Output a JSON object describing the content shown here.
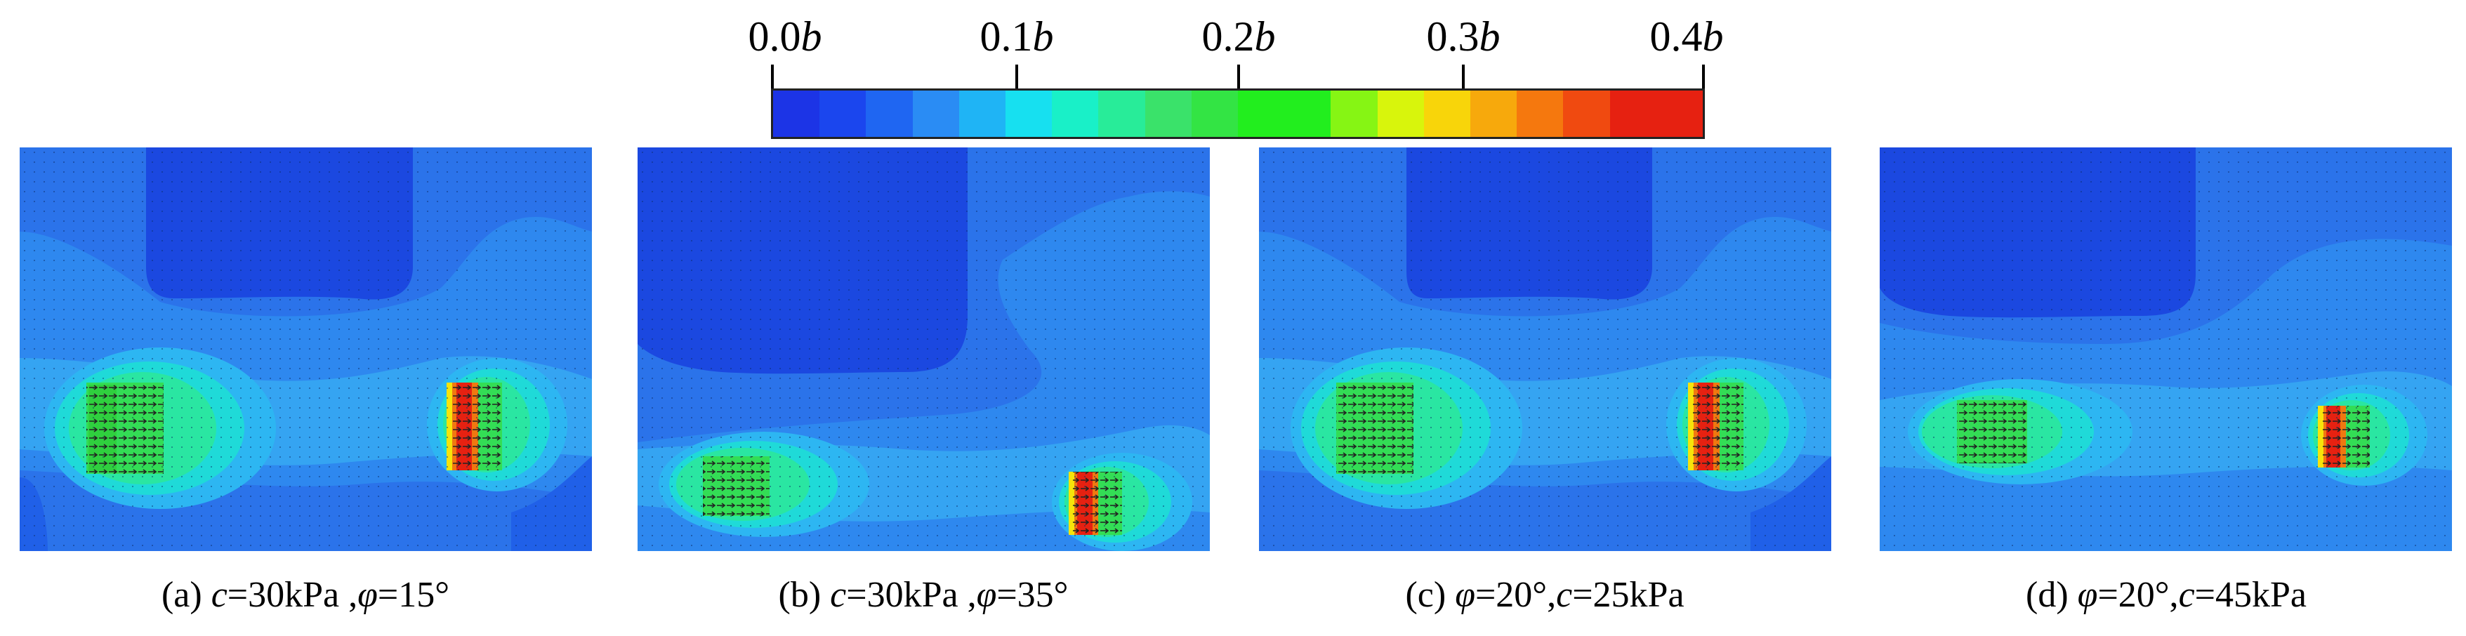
{
  "colorbar": {
    "tick_labels": [
      {
        "coef": "0.0",
        "sym": "b"
      },
      {
        "coef": "0.1",
        "sym": "b"
      },
      {
        "coef": "0.2",
        "sym": "b"
      },
      {
        "coef": "0.3",
        "sym": "b"
      },
      {
        "coef": "0.4",
        "sym": "b"
      }
    ],
    "colors": [
      "#1c34e6",
      "#1b46ee",
      "#1f66f2",
      "#2a8cf4",
      "#1fb4f5",
      "#17e0f0",
      "#19f0c8",
      "#28ec99",
      "#3ae26a",
      "#33e444",
      "#22ee1e",
      "#22ee1e",
      "#86f514",
      "#d8f50c",
      "#f8d50a",
      "#f7a90c",
      "#f5780e",
      "#f04a10",
      "#e62111",
      "#e62111"
    ]
  },
  "panels": [
    {
      "caption": {
        "label": "(a) ",
        "v1": "c",
        "t1": "=30kPa ,",
        "v2": "φ",
        "t2": "=15°"
      }
    },
    {
      "caption": {
        "label": "(b) ",
        "v1": "c",
        "t1": "=30kPa ,",
        "v2": "φ",
        "t2": "=35°"
      }
    },
    {
      "caption": {
        "label": "(c) ",
        "v1": "φ",
        "t1": "=20°,",
        "v2": "c",
        "t2": "=25kPa"
      }
    },
    {
      "caption": {
        "label": "(d) ",
        "v1": "φ",
        "t1": "=20°,",
        "v2": "c",
        "t2": "=45kPa"
      }
    }
  ]
}
